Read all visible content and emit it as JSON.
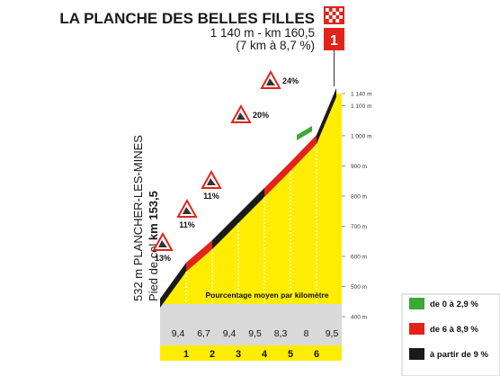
{
  "chart_data": {
    "type": "area",
    "title": "LA PLANCHE DES BELLES FILLES",
    "subtitle_line1": "1 140 m - km 160,5",
    "subtitle_line2": "(7 km à 8,7 %)",
    "category": "1",
    "side_label": {
      "text": "532 m PLANCHER-LES-MINES",
      "text2_prefix": "Pied de col ",
      "text2_bold": "km 153,5"
    },
    "altitude_ticks": [
      {
        "value": 400,
        "label": "400 m"
      },
      {
        "value": 500,
        "label": "500 m"
      },
      {
        "value": 600,
        "label": "600 m"
      },
      {
        "value": 700,
        "label": "700 m"
      },
      {
        "value": 800,
        "label": "800 m"
      },
      {
        "value": 900,
        "label": "900 m"
      },
      {
        "value": 1000,
        "label": "1 000 m"
      },
      {
        "value": 1100,
        "label": "1 100 m"
      },
      {
        "value": 1140,
        "label": "1 140 m"
      }
    ],
    "km_labels": [
      "1",
      "2",
      "3",
      "4",
      "5",
      "6"
    ],
    "segments": [
      {
        "km": 1,
        "gradient": 9.4,
        "label": "9,4"
      },
      {
        "km": 2,
        "gradient": 6.7,
        "label": "6,7"
      },
      {
        "km": 3,
        "gradient": 9.4,
        "label": "9,4"
      },
      {
        "km": 4,
        "gradient": 9.5,
        "label": "9,5"
      },
      {
        "km": 5,
        "gradient": 8.3,
        "label": "8,3"
      },
      {
        "km": 6,
        "gradient": 8,
        "label": "8"
      },
      {
        "km": 7,
        "gradient": 9.5,
        "label": "9,5"
      }
    ],
    "avg_label": "Pourcentage moyen par kilomètre",
    "max_gradients": [
      {
        "label": "13%",
        "km": 0.2
      },
      {
        "label": "11%",
        "km": 1.2
      },
      {
        "label": "11%",
        "km": 2.2
      },
      {
        "label": "20%",
        "km": 5.2
      },
      {
        "label": "24%",
        "km": 6.6
      }
    ],
    "legend": [
      {
        "label": "de 0 à 2,9 %",
        "color": "#3aa935"
      },
      {
        "label": "de 6 à 8,9 %",
        "color": "#e2231a"
      },
      {
        "label": "à partir de 9 %",
        "color": "#1a1a1a"
      }
    ],
    "colors": {
      "fill": "#ffed00",
      "red": "#e2231a",
      "black": "#1a1a1a",
      "green": "#3aa935",
      "category_red": "#e2231a"
    }
  }
}
